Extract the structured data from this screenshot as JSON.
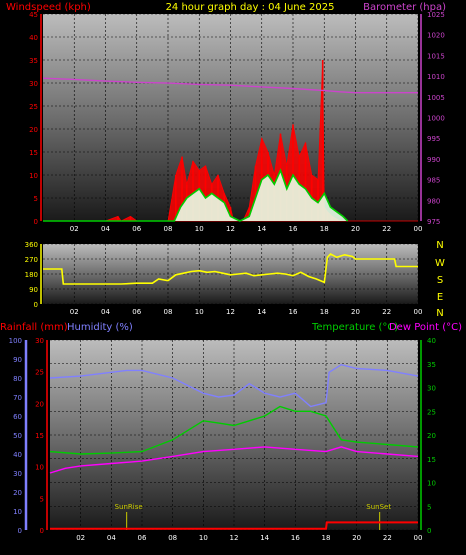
{
  "header": {
    "left": "Windspeed (kph)",
    "center": "24 hour graph day : 04 June 2025",
    "right": "Barometer (hpa)"
  },
  "bottom_header": {
    "rainfall": "Rainfall (mm)",
    "humidity": "Humidity (%)",
    "temperature": "Temperature (°C)",
    "dewpoint": "Dew Point (°C)"
  },
  "compass": [
    "N",
    "W",
    "S",
    "E",
    "N"
  ],
  "sun": {
    "rise": "SunRise",
    "set": "SunSet"
  },
  "colors": {
    "wind": "#ff0000",
    "wind_avg": "#00cc00",
    "barometer": "#cc44cc",
    "direction": "#ffff00",
    "humidity": "#8080ff",
    "temperature": "#00cc00",
    "dewpoint": "#ff00ff",
    "rainfall": "#ff0000",
    "sun": "#cccc00"
  },
  "chart_data": [
    {
      "type": "line",
      "name": "wind-barometer",
      "x_ticks": [
        "02",
        "04",
        "06",
        "08",
        "10",
        "12",
        "14",
        "16",
        "18",
        "20",
        "22",
        "00"
      ],
      "ylim_left": [
        0,
        45
      ],
      "yticks_left": [
        0,
        5,
        10,
        15,
        20,
        25,
        30,
        35,
        40,
        45
      ],
      "ylim_right": [
        975,
        1025
      ],
      "yticks_right": [
        975,
        980,
        985,
        990,
        995,
        1000,
        1005,
        1010,
        1015,
        1020,
        1025
      ],
      "wind_gust": {
        "x": [
          0,
          4,
          4.8,
          5,
          5.6,
          6,
          7,
          8,
          8.5,
          8.9,
          9.2,
          9.6,
          10,
          10.4,
          10.8,
          11.2,
          11.6,
          12,
          12.2,
          12.8,
          13.2,
          13.6,
          14,
          14.4,
          14.8,
          15.2,
          15.6,
          16,
          16.4,
          16.8,
          17.2,
          17.6,
          17.9,
          18,
          18.2,
          18.5,
          19,
          19.5,
          24
        ],
        "y": [
          0,
          0,
          1,
          0,
          1,
          0,
          0,
          0,
          10,
          14,
          8,
          13,
          11,
          12,
          8,
          10,
          6,
          3,
          0,
          0,
          3,
          12,
          18,
          15,
          10,
          19,
          12,
          21,
          14,
          17,
          10,
          9,
          35,
          3,
          2,
          1,
          0,
          0,
          0
        ]
      },
      "wind_avg": {
        "x": [
          0,
          8.4,
          8.8,
          9.2,
          9.6,
          10,
          10.4,
          10.8,
          11.2,
          11.6,
          12,
          12.6,
          13.2,
          13.6,
          14,
          14.4,
          14.8,
          15.2,
          15.6,
          16,
          16.4,
          16.8,
          17.2,
          17.6,
          18,
          18.4,
          18.8,
          19.2,
          19.5
        ],
        "y": [
          0,
          0,
          3,
          5,
          6,
          7,
          5,
          6,
          5,
          4,
          1,
          0,
          1,
          5,
          9,
          10,
          8,
          11,
          7,
          10,
          8,
          7,
          5,
          4,
          6,
          3,
          2,
          1,
          0
        ]
      },
      "barometer": {
        "x": [
          0,
          2,
          4,
          6,
          8,
          10,
          12,
          14,
          16,
          18,
          19,
          20,
          22,
          24
        ],
        "y": [
          1009.5,
          1009.2,
          1008.8,
          1008.5,
          1008.3,
          1008.0,
          1007.8,
          1007.4,
          1007.0,
          1006.5,
          1006.2,
          1006.0,
          1006.0,
          1006.0
        ]
      }
    },
    {
      "type": "line",
      "name": "wind-direction",
      "x_ticks": [
        "02",
        "04",
        "06",
        "08",
        "10",
        "12",
        "14",
        "16",
        "18",
        "20",
        "22",
        "00"
      ],
      "ylim": [
        0,
        360
      ],
      "yticks": [
        0,
        90,
        180,
        270,
        360
      ],
      "direction": {
        "x": [
          0,
          1.2,
          1.3,
          2,
          3,
          4,
          5,
          6,
          7,
          7.4,
          8,
          8.5,
          9,
          9.5,
          10,
          10.5,
          11,
          11.5,
          12,
          12.5,
          13,
          13.5,
          14,
          14.5,
          15,
          15.5,
          16,
          16.5,
          17,
          17.5,
          18,
          18.2,
          18.4,
          18.8,
          19.3,
          19.8,
          20,
          21,
          22,
          22.5,
          22.6,
          24
        ],
        "y": [
          210,
          210,
          120,
          120,
          120,
          120,
          120,
          125,
          125,
          150,
          140,
          175,
          185,
          195,
          200,
          190,
          195,
          185,
          175,
          180,
          185,
          170,
          175,
          180,
          185,
          180,
          170,
          190,
          165,
          150,
          130,
          280,
          300,
          280,
          295,
          285,
          270,
          270,
          270,
          270,
          225,
          225
        ]
      }
    },
    {
      "type": "line",
      "name": "temp-humidity",
      "x_ticks": [
        "02",
        "04",
        "06",
        "08",
        "10",
        "12",
        "14",
        "16",
        "18",
        "20",
        "22",
        "00"
      ],
      "ylim_humidity": [
        0,
        100
      ],
      "yticks_humidity": [
        0,
        10,
        20,
        30,
        40,
        50,
        60,
        70,
        80,
        90,
        100
      ],
      "ylim_rain": [
        0,
        30
      ],
      "yticks_rain": [
        0,
        5,
        10,
        15,
        20,
        25,
        30
      ],
      "ylim_temp": [
        0,
        40
      ],
      "yticks_temp": [
        0,
        5,
        10,
        15,
        20,
        25,
        30,
        35,
        40
      ],
      "humidity": {
        "x": [
          0,
          2,
          4,
          5,
          6,
          8,
          10,
          11,
          12,
          13,
          14,
          15,
          16,
          17,
          18,
          18.2,
          19,
          20,
          22,
          24
        ],
        "y": [
          80,
          81,
          83,
          84,
          84,
          80,
          72,
          70,
          71,
          77,
          72,
          70,
          72,
          65,
          67,
          83,
          87,
          85,
          84,
          81
        ]
      },
      "temperature": {
        "x": [
          0,
          2,
          4,
          6,
          8,
          9,
          10,
          11,
          12,
          13,
          14,
          15,
          16,
          17,
          18,
          19,
          20,
          22,
          24
        ],
        "y": [
          16.5,
          16,
          16.2,
          16.5,
          19,
          21,
          23,
          22.5,
          22,
          23,
          24,
          26,
          25,
          25,
          24,
          19,
          18.5,
          18,
          17.5
        ]
      },
      "dewpoint": {
        "x": [
          0,
          1,
          2,
          4,
          6,
          8,
          10,
          12,
          14,
          16,
          18,
          19,
          20,
          22,
          24
        ],
        "y": [
          12,
          13,
          13.5,
          14,
          14.5,
          15.5,
          16.5,
          17,
          17.5,
          17,
          16.5,
          17.5,
          16.5,
          16,
          15.5
        ]
      },
      "rainfall": {
        "x": [
          0,
          18,
          18.05,
          24
        ],
        "y": [
          0.2,
          0.2,
          1.2,
          1.2
        ]
      },
      "sunrise_hour": 5,
      "sunset_hour": 21.5
    }
  ]
}
